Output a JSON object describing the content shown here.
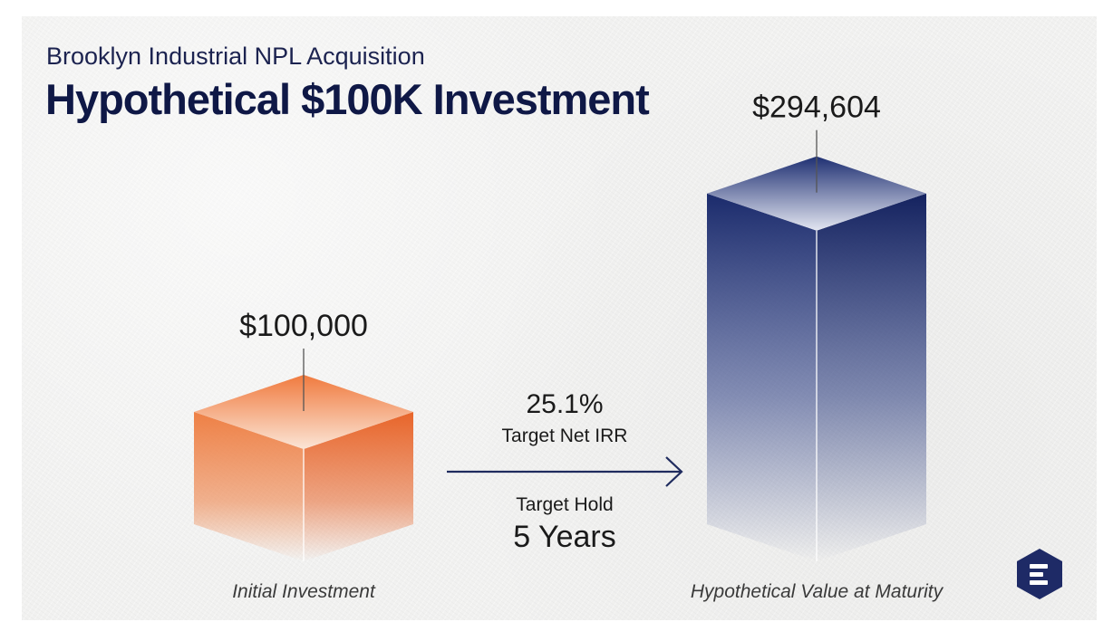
{
  "header": {
    "subtitle": "Brooklyn Industrial NPL Acquisition",
    "title": "Hypothetical $100K Investment"
  },
  "chart_data": {
    "type": "bar",
    "categories": [
      "Initial Investment",
      "Hypothetical Value at Maturity"
    ],
    "values": [
      100000,
      294604
    ],
    "value_labels": [
      "$100,000",
      "$294,604"
    ],
    "colors": [
      "#ee7a3c",
      "#1f3175"
    ],
    "title": "Hypothetical $100K Investment",
    "annotations": {
      "irr_value": "25.1%",
      "irr_label": "Target Net IRR",
      "hold_label": "Target Hold",
      "hold_value": "5 Years"
    }
  },
  "logo": {
    "icon": "menu-lines-icon",
    "color": "#1e2a66"
  }
}
